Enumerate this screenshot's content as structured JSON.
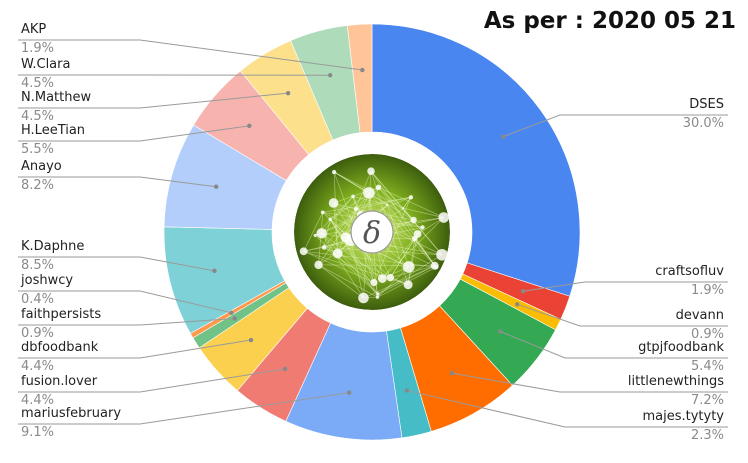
{
  "header": {
    "as_of_label": "As per : 2020 05 21"
  },
  "center_logo": {
    "symbol": "δ",
    "icon": "delta-network-logo"
  },
  "chart_data": {
    "type": "pie",
    "donut": true,
    "legend": "none",
    "slices": [
      {
        "name": "DSES",
        "value": 30.0,
        "label": "30.0%",
        "color": "#4a86f0"
      },
      {
        "name": "craftsofluv",
        "value": 1.9,
        "label": "1.9%",
        "color": "#ea4335"
      },
      {
        "name": "devann",
        "value": 0.9,
        "label": "0.9%",
        "color": "#fbbc04"
      },
      {
        "name": "gtpjfoodbank",
        "value": 5.4,
        "label": "5.4%",
        "color": "#34a853"
      },
      {
        "name": "littlenewthings",
        "value": 7.2,
        "label": "7.2%",
        "color": "#ff6d01"
      },
      {
        "name": "majes.tytyty",
        "value": 2.3,
        "label": "2.3%",
        "color": "#46bdc6"
      },
      {
        "name": "mariusfebruary",
        "value": 9.1,
        "label": "9.1%",
        "color": "#7baaf7"
      },
      {
        "name": "fusion.lover",
        "value": 4.4,
        "label": "4.4%",
        "color": "#f07b72"
      },
      {
        "name": "dbfoodbank",
        "value": 4.4,
        "label": "4.4%",
        "color": "#fcd04f"
      },
      {
        "name": "faithpersists",
        "value": 0.9,
        "label": "0.9%",
        "color": "#71c287"
      },
      {
        "name": "joshwcy",
        "value": 0.4,
        "label": "0.4%",
        "color": "#ff994d"
      },
      {
        "name": "K.Daphne",
        "value": 8.5,
        "label": "8.5%",
        "color": "#7ed1d7"
      },
      {
        "name": "Anayo",
        "value": 8.2,
        "label": "8.2%",
        "color": "#b3cefb"
      },
      {
        "name": "H.LeeTian",
        "value": 5.5,
        "label": "5.5%",
        "color": "#f7b4ae"
      },
      {
        "name": "N.Matthew",
        "value": 4.5,
        "label": "4.5%",
        "color": "#fde08c"
      },
      {
        "name": "W.Clara",
        "value": 4.5,
        "label": "4.5%",
        "color": "#aedcba"
      },
      {
        "name": "AKP",
        "value": 1.9,
        "label": "1.9%",
        "color": "#ffc599"
      }
    ]
  }
}
